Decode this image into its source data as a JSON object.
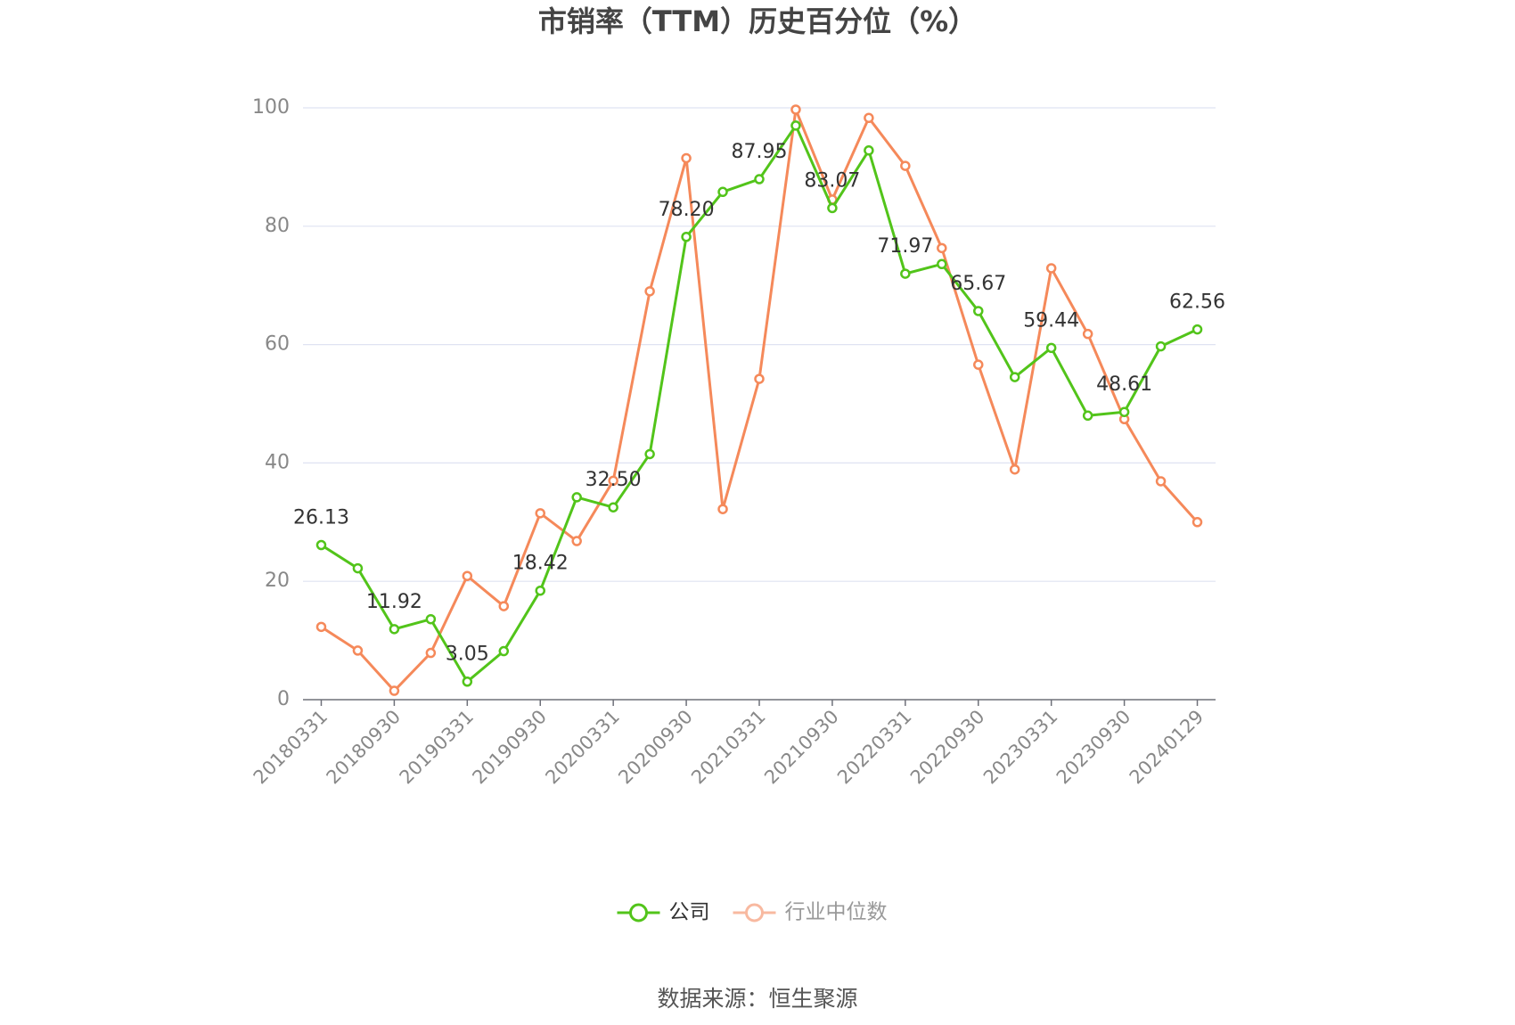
{
  "chart_data": {
    "type": "line",
    "title": "市销率（TTM）历史百分位（%）",
    "source": "数据来源：恒生聚源",
    "categories": [
      "20180331",
      null,
      "20180930",
      null,
      "20190331",
      null,
      "20190930",
      null,
      "20200331",
      null,
      "20200930",
      null,
      "20210331",
      null,
      "20210930",
      null,
      "20220331",
      null,
      "20220930",
      null,
      "20230331",
      null,
      "20230930",
      null,
      "20240129"
    ],
    "series": [
      {
        "name": "公司",
        "color": "#52c41a",
        "values": [
          26.13,
          22.2,
          11.92,
          13.6,
          3.05,
          8.2,
          18.42,
          34.2,
          32.5,
          41.5,
          78.2,
          85.8,
          87.95,
          97.0,
          83.07,
          92.8,
          71.97,
          73.6,
          65.67,
          54.5,
          59.44,
          48.0,
          48.61,
          59.7,
          62.56
        ],
        "value_labels": [
          "26.13",
          null,
          "11.92",
          null,
          "3.05",
          null,
          "18.42",
          null,
          "32.50",
          null,
          "78.20",
          null,
          "87.95",
          null,
          "83.07",
          null,
          "71.97",
          null,
          "65.67",
          null,
          "59.44",
          null,
          "48.61",
          null,
          "62.56"
        ]
      },
      {
        "name": "行业中位数",
        "color": "#f5895a",
        "values": [
          12.3,
          8.3,
          1.5,
          7.9,
          20.9,
          15.8,
          31.5,
          26.8,
          37.0,
          69.0,
          91.5,
          32.2,
          54.2,
          99.7,
          84.5,
          98.3,
          90.2,
          76.3,
          56.6,
          38.9,
          72.9,
          61.8,
          47.4,
          36.9,
          30.0
        ]
      }
    ],
    "ylim": [
      0,
      100
    ],
    "yticks": [
      0,
      20,
      40,
      60,
      80,
      100
    ],
    "grid": true,
    "legend": "bottom"
  }
}
